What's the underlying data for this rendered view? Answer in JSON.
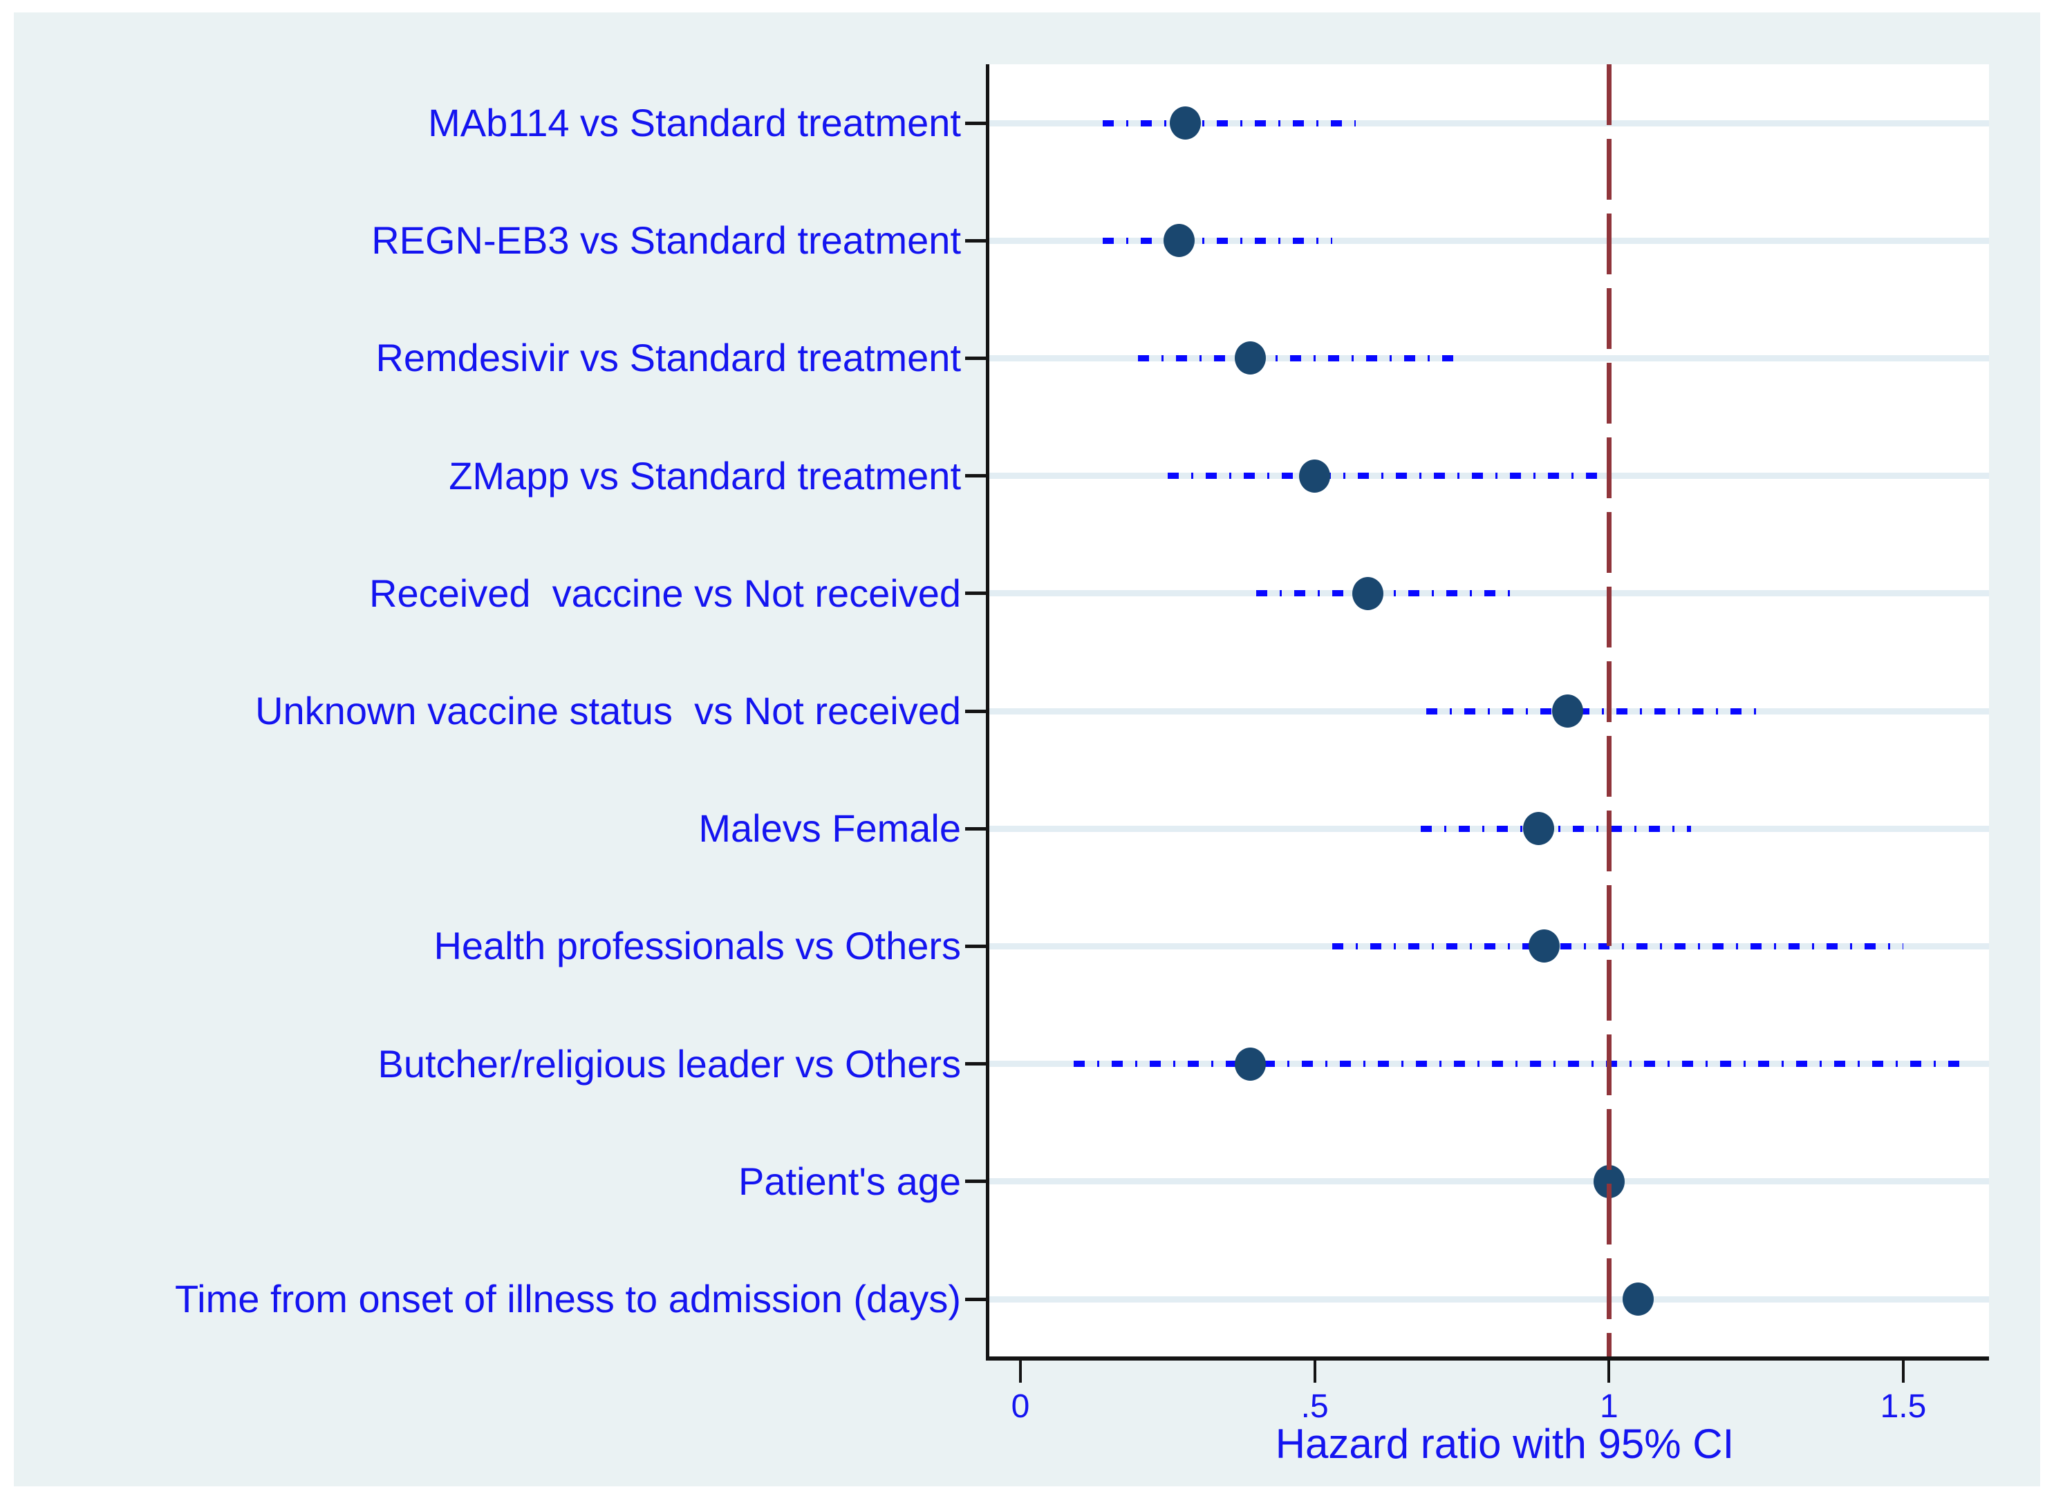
{
  "figure": {
    "background": "#ffffff",
    "canvas_bg": "#eaf2f3",
    "plot_bg": "#ffffff",
    "axis_color": "#141414",
    "grid_color": "#e2edf3",
    "label_color": "#1414f0",
    "ci_color": "#0808ff",
    "marker_color": "#1a476f",
    "refline_color": "#90353b"
  },
  "chart_data": {
    "type": "scatter",
    "subtype": "forest-plot",
    "title": "",
    "xlabel": "Hazard ratio with 95% CI",
    "ylabel": "",
    "xlim": [
      0,
      1.65
    ],
    "grid": "horizontal",
    "legend": null,
    "reference_line_x": 1,
    "x_ticks": [
      {
        "value": 0,
        "label": "0"
      },
      {
        "value": 0.5,
        "label": ".5"
      },
      {
        "value": 1,
        "label": "1"
      },
      {
        "value": 1.5,
        "label": "1.5"
      }
    ],
    "rows": [
      {
        "label": "MAb114 vs Standard treatment",
        "hr": 0.28,
        "ci_low": 0.14,
        "ci_high": 0.57
      },
      {
        "label": "REGN-EB3 vs Standard treatment",
        "hr": 0.27,
        "ci_low": 0.14,
        "ci_high": 0.53
      },
      {
        "label": "Remdesivir vs Standard treatment",
        "hr": 0.39,
        "ci_low": 0.2,
        "ci_high": 0.75
      },
      {
        "label": "ZMapp vs Standard treatment",
        "hr": 0.5,
        "ci_low": 0.25,
        "ci_high": 0.99
      },
      {
        "label": "Received  vaccine vs Not received",
        "hr": 0.59,
        "ci_low": 0.4,
        "ci_high": 0.85
      },
      {
        "label": "Unknown vaccine status  vs Not received",
        "hr": 0.93,
        "ci_low": 0.69,
        "ci_high": 1.25
      },
      {
        "label": "Malevs Female",
        "hr": 0.88,
        "ci_low": 0.68,
        "ci_high": 1.14
      },
      {
        "label": "Health professionals vs Others",
        "hr": 0.89,
        "ci_low": 0.53,
        "ci_high": 1.5
      },
      {
        "label": "Butcher/religious leader vs Others",
        "hr": 0.39,
        "ci_low": 0.09,
        "ci_high": 1.6
      },
      {
        "label": "Patient's age",
        "hr": 1.0,
        "ci_low": null,
        "ci_high": null
      },
      {
        "label": "Time from onset of illness to admission (days)",
        "hr": 1.05,
        "ci_low": null,
        "ci_high": null
      }
    ]
  }
}
